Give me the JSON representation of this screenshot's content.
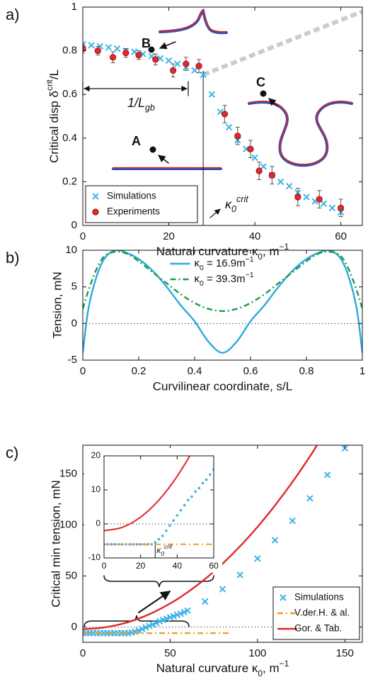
{
  "chart_data": [
    {
      "type": "scatter",
      "panel_label": "a)",
      "xlabel": [
        {
          "text": "Natural curvature κ"
        },
        {
          "text": "0",
          "script": "sub"
        },
        {
          "text": ", m"
        },
        {
          "text": "−1",
          "script": "sup"
        }
      ],
      "ylabel": [
        {
          "text": "Critical disp δ"
        },
        {
          "text": "crit",
          "script": "sup"
        },
        {
          "text": "/L"
        }
      ],
      "xlim": [
        0,
        65
      ],
      "ylim": [
        0,
        1
      ],
      "xticks": [
        0,
        20,
        40,
        60
      ],
      "yticks": [
        0,
        0.2,
        0.4,
        0.6,
        0.8,
        1
      ],
      "legend": "lower left",
      "kappa_crit": 28,
      "guide": {
        "x": [
          28,
          65
        ],
        "values": [
          0.69,
          0.98
        ],
        "color": "#cccccc"
      },
      "annotations": [
        "B",
        "C",
        "A",
        [
          {
            "text": "1/L"
          },
          {
            "text": "gb",
            "script": "sub"
          }
        ],
        [
          {
            "text": "κ"
          },
          {
            "text": "0",
            "script": "sub"
          },
          {
            "text": "crit",
            "script": "sup"
          }
        ]
      ],
      "series": [
        {
          "name": "Simulations",
          "color": "#3cb4e6",
          "marker": "x",
          "x": [
            0,
            2,
            4,
            6,
            8,
            10,
            12,
            14,
            16,
            18,
            20,
            22,
            24,
            26,
            28,
            30,
            32,
            34,
            36,
            38,
            40,
            42,
            44,
            46,
            48,
            50,
            52,
            54,
            56,
            58,
            60
          ],
          "values": [
            0.83,
            0.825,
            0.82,
            0.815,
            0.81,
            0.8,
            0.795,
            0.785,
            0.775,
            0.765,
            0.755,
            0.74,
            0.725,
            0.71,
            0.69,
            0.6,
            0.52,
            0.45,
            0.39,
            0.35,
            0.31,
            0.27,
            0.23,
            0.2,
            0.18,
            0.15,
            0.13,
            0.11,
            0.1,
            0.08,
            0.06
          ]
        },
        {
          "name": "Experiments",
          "color": "#e5262b",
          "marker": "o",
          "x": [
            0,
            3.5,
            7,
            10,
            13,
            16.9,
            21,
            24,
            27,
            33,
            36,
            39,
            41,
            44,
            50,
            55,
            60
          ],
          "values": [
            0.81,
            0.8,
            0.77,
            0.79,
            0.78,
            0.76,
            0.71,
            0.74,
            0.73,
            0.51,
            0.41,
            0.35,
            0.25,
            0.23,
            0.13,
            0.12,
            0.08
          ],
          "errors": [
            0.02,
            0.02,
            0.025,
            0.02,
            0.02,
            0.025,
            0.03,
            0.03,
            0.03,
            0.04,
            0.04,
            0.04,
            0.04,
            0.04,
            0.04,
            0.04,
            0.04
          ]
        }
      ]
    },
    {
      "type": "line",
      "panel_label": "b)",
      "xlabel": "Curvilinear coordinate, s/L",
      "ylabel": "Tension, mN",
      "xlim": [
        0,
        1
      ],
      "ylim": [
        -5,
        10
      ],
      "xticks": [
        0,
        0.2,
        0.4,
        0.6,
        0.8,
        1
      ],
      "yticks": [
        -5,
        0,
        5,
        10
      ],
      "legend": "upper center",
      "zero_line": true,
      "x": [
        0,
        0.02,
        0.05,
        0.08,
        0.12,
        0.16,
        0.2,
        0.25,
        0.3,
        0.35,
        0.4,
        0.45,
        0.5,
        0.55,
        0.6,
        0.65,
        0.7,
        0.75,
        0.8,
        0.84,
        0.88,
        0.92,
        0.95,
        0.98,
        1
      ],
      "series": [
        {
          "name": [
            {
              "text": "κ"
            },
            {
              "text": "0",
              "script": "sub"
            },
            {
              "text": " = 16.9m"
            },
            {
              "text": "−1",
              "script": "sup"
            }
          ],
          "color": "#2aa9e0",
          "line_style": "solid",
          "values": [
            -4,
            2,
            6.5,
            9,
            10,
            9.6,
            8.8,
            7.2,
            5,
            2.5,
            0.3,
            -2.5,
            -4,
            -2.5,
            0.3,
            2.5,
            5,
            7.2,
            8.8,
            9.6,
            10,
            9,
            6.5,
            2,
            -4
          ]
        },
        {
          "name": [
            {
              "text": "κ"
            },
            {
              "text": "0",
              "script": "sub"
            },
            {
              "text": " = 39.3m"
            },
            {
              "text": "−1",
              "script": "sup"
            }
          ],
          "color": "#1f9a4a",
          "line_style": "dashdot",
          "values": [
            2,
            4.5,
            7.5,
            9.3,
            9.8,
            9.5,
            8.5,
            7,
            5.5,
            4,
            2.8,
            2,
            1.7,
            2,
            2.8,
            4,
            5.5,
            7,
            8.5,
            9.5,
            9.8,
            9.3,
            7.5,
            4.5,
            2
          ]
        }
      ]
    },
    {
      "type": "scatter",
      "panel_label": "c)",
      "xlabel": [
        {
          "text": "Natural curvature κ"
        },
        {
          "text": "0",
          "script": "sub"
        },
        {
          "text": ", m"
        },
        {
          "text": "−1",
          "script": "sup"
        }
      ],
      "ylabel": "Critical min tension, mN",
      "xlim": [
        0,
        160
      ],
      "ylim": [
        -15,
        178
      ],
      "xticks": [
        0,
        50,
        100,
        150
      ],
      "yticks": [
        0,
        50,
        100,
        150
      ],
      "legend": "lower right",
      "zero_line": true,
      "series": [
        {
          "name": "Simulations",
          "color": "#3cb4e6",
          "marker": "x",
          "x": [
            0,
            2,
            4,
            6,
            8,
            10,
            12,
            14,
            16,
            18,
            20,
            22,
            24,
            26,
            28,
            30,
            32,
            34,
            36,
            38,
            40,
            42,
            44,
            46,
            48,
            50,
            52,
            54,
            56,
            58,
            60,
            70,
            80,
            90,
            100,
            110,
            120,
            130,
            140,
            150
          ],
          "values": [
            -6,
            -6,
            -6,
            -6,
            -6,
            -6,
            -6,
            -6,
            -6,
            -6,
            -6,
            -6,
            -6,
            -6,
            -5.5,
            -4.5,
            -3.5,
            -2,
            -0.5,
            1,
            2.5,
            4,
            5.5,
            7,
            8,
            9.5,
            10.5,
            12,
            13,
            14.5,
            16,
            25,
            37,
            51,
            67,
            85,
            104,
            126,
            149,
            175
          ]
        },
        {
          "name": "V.der.H. & al.",
          "color": "#f39c2a",
          "line_style": "dashdot",
          "x": [
            0,
            85
          ],
          "values": [
            -6,
            -6
          ]
        },
        {
          "name": "Gor. & Tab.",
          "color": "#e0282c",
          "line_style": "solid",
          "x": [
            0,
            10,
            20,
            30,
            40,
            50,
            60,
            70,
            80,
            90,
            100,
            110,
            120,
            130,
            134
          ],
          "values": [
            -2,
            -1,
            2,
            7,
            14,
            23,
            34,
            47,
            62,
            79,
            98,
            119,
            142,
            167,
            178
          ]
        }
      ],
      "inset": {
        "xlim": [
          0,
          60
        ],
        "ylim": [
          -10,
          20
        ],
        "xticks": [
          0,
          20,
          40,
          60
        ],
        "yticks": [
          -10,
          0,
          10,
          20
        ],
        "annotation": [
          {
            "text": "κ"
          },
          {
            "text": "0",
            "script": "sub"
          },
          {
            "text": "crit",
            "script": "sup"
          }
        ]
      }
    }
  ]
}
